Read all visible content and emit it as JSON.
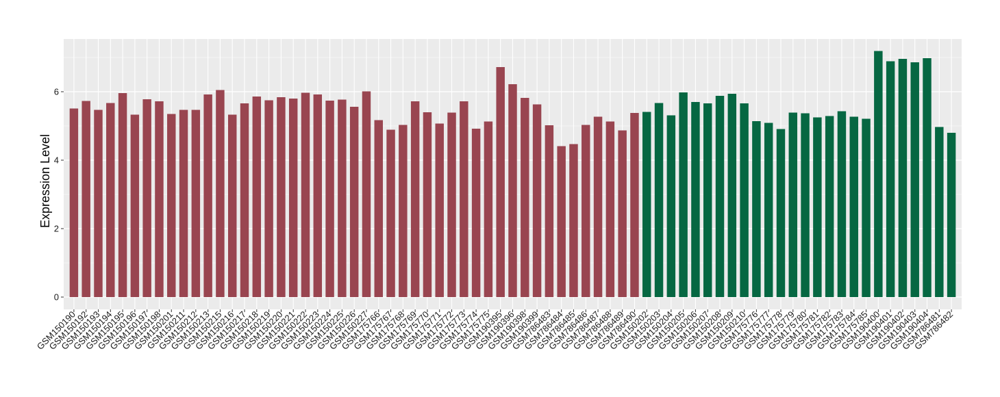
{
  "chart_data": {
    "type": "bar",
    "title": "",
    "xlabel": "",
    "ylabel": "Expression Level",
    "ylim": [
      -0.3,
      7.55
    ],
    "yticks": [
      0,
      2,
      4,
      6
    ],
    "grid": true,
    "panel_background": "#EBEBEB",
    "gridline_color": "#FFFFFF",
    "legend": "none",
    "colors": {
      "group1": "#994550",
      "group2": "#066742"
    },
    "categories": [
      "GSM150190",
      "GSM150192",
      "GSM150193",
      "GSM150194",
      "GSM150195",
      "GSM150196",
      "GSM150197",
      "GSM150198",
      "GSM150201",
      "GSM150211",
      "GSM150212",
      "GSM150213",
      "GSM150215",
      "GSM150216",
      "GSM150217",
      "GSM150218",
      "GSM150219",
      "GSM150220",
      "GSM150221",
      "GSM150222",
      "GSM150223",
      "GSM150224",
      "GSM150225",
      "GSM150226",
      "GSM150227",
      "GSM175766",
      "GSM175767",
      "GSM175768",
      "GSM175769",
      "GSM175770",
      "GSM175771",
      "GSM175772",
      "GSM175773",
      "GSM175774",
      "GSM175775",
      "GSM190395",
      "GSM190396",
      "GSM190398",
      "GSM190399",
      "GSM786483",
      "GSM786484",
      "GSM786485",
      "GSM786486",
      "GSM786487",
      "GSM786488",
      "GSM786489",
      "GSM786490",
      "GSM150202",
      "GSM150203",
      "GSM150204",
      "GSM150205",
      "GSM150206",
      "GSM150207",
      "GSM150208",
      "GSM150209",
      "GSM150210",
      "GSM175776",
      "GSM175777",
      "GSM175778",
      "GSM175779",
      "GSM175780",
      "GSM175781",
      "GSM175782",
      "GSM175783",
      "GSM175784",
      "GSM175785",
      "GSM190400",
      "GSM190401",
      "GSM190402",
      "GSM190403",
      "GSM190404",
      "GSM786481",
      "GSM786482"
    ],
    "values": [
      5.51,
      5.73,
      5.47,
      5.67,
      5.96,
      5.33,
      5.78,
      5.72,
      5.35,
      5.47,
      5.47,
      5.92,
      6.05,
      5.33,
      5.66,
      5.86,
      5.75,
      5.84,
      5.8,
      5.97,
      5.92,
      5.74,
      5.77,
      5.56,
      6.01,
      5.17,
      4.89,
      5.03,
      5.72,
      5.4,
      5.07,
      5.39,
      5.72,
      4.92,
      5.13,
      6.72,
      6.22,
      5.82,
      5.63,
      5.02,
      4.41,
      4.47,
      5.03,
      5.27,
      5.13,
      4.87,
      5.38,
      5.41,
      5.67,
      5.31,
      5.98,
      5.7,
      5.66,
      5.88,
      5.94,
      5.66,
      5.14,
      5.09,
      4.91,
      5.39,
      5.37,
      5.25,
      5.29,
      5.43,
      5.27,
      5.21,
      7.19,
      6.89,
      6.96,
      6.86,
      6.98,
      4.97,
      4.8
    ],
    "groups": [
      1,
      1,
      1,
      1,
      1,
      1,
      1,
      1,
      1,
      1,
      1,
      1,
      1,
      1,
      1,
      1,
      1,
      1,
      1,
      1,
      1,
      1,
      1,
      1,
      1,
      1,
      1,
      1,
      1,
      1,
      1,
      1,
      1,
      1,
      1,
      1,
      1,
      1,
      1,
      1,
      1,
      1,
      1,
      1,
      1,
      1,
      1,
      2,
      2,
      2,
      2,
      2,
      2,
      2,
      2,
      2,
      2,
      2,
      2,
      2,
      2,
      2,
      2,
      2,
      2,
      2,
      2,
      2,
      2,
      2,
      2,
      2,
      2
    ]
  }
}
